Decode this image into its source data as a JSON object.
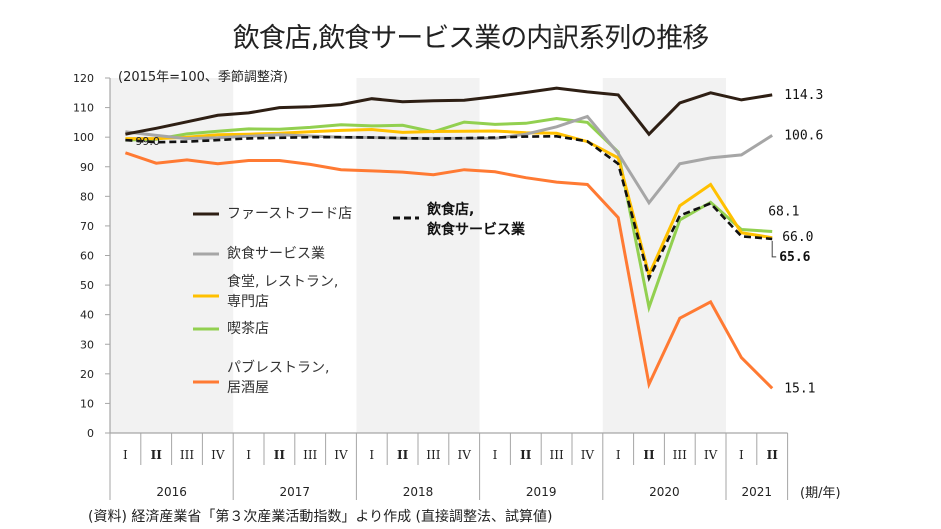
{
  "chart_data": {
    "type": "line",
    "title": "飲食店,飲食サービス業の内訳系列の推移",
    "subtitle": "(2015年=100、季節調整済)",
    "xlabel": "(期/年)",
    "ylabel": "",
    "ylim": [
      0,
      120
    ],
    "yticks": [
      0,
      10,
      20,
      30,
      40,
      50,
      60,
      70,
      80,
      90,
      100,
      110,
      120
    ],
    "grid": false,
    "legend_position": "center-left",
    "quarters": [
      "I",
      "II",
      "III",
      "IV",
      "I",
      "II",
      "III",
      "IV",
      "I",
      "II",
      "III",
      "IV",
      "I",
      "II",
      "III",
      "IV",
      "I",
      "II",
      "III",
      "IV",
      "I",
      "II"
    ],
    "years": [
      {
        "label": "2016",
        "quarters": 4,
        "shaded": true
      },
      {
        "label": "2017",
        "quarters": 4,
        "shaded": false
      },
      {
        "label": "2018",
        "quarters": 4,
        "shaded": true
      },
      {
        "label": "2019",
        "quarters": 4,
        "shaded": false
      },
      {
        "label": "2020",
        "quarters": 4,
        "shaded": true
      },
      {
        "label": "2021",
        "quarters": 2,
        "shaded": false
      }
    ],
    "series": [
      {
        "key": "fastfood",
        "name": "ファーストフード店",
        "color": "#2e1f14",
        "dash": false,
        "values": [
          101.0,
          103.0,
          105.2,
          107.4,
          108.2,
          110.0,
          110.3,
          111.0,
          113.0,
          112.0,
          112.3,
          112.5,
          113.7,
          115.1,
          116.6,
          115.3,
          114.3,
          101.0,
          111.6,
          115.0,
          112.6,
          114.3
        ],
        "end_label": "114.3"
      },
      {
        "key": "service",
        "name": "飲食サービス業",
        "color": "#a6a6a6",
        "dash": false,
        "values": [
          101.8,
          100.6,
          99.5,
          99.8,
          100.3,
          100.8,
          100.4,
          100.0,
          99.9,
          99.6,
          99.6,
          99.6,
          99.6,
          101.0,
          103.5,
          107.0,
          94.5,
          77.8,
          91.0,
          93.0,
          94.0,
          100.6
        ],
        "end_label": "100.6"
      },
      {
        "key": "restaurant",
        "name": "食堂, レストラン, 専門店",
        "color": "#ffc000",
        "dash": false,
        "values": [
          99.5,
          99.5,
          100.0,
          100.8,
          101.0,
          101.3,
          101.8,
          102.3,
          102.6,
          101.6,
          101.9,
          102.0,
          102.1,
          101.5,
          101.3,
          98.5,
          93.0,
          53.5,
          76.8,
          84.0,
          67.7,
          66.0
        ],
        "end_label": "66.0"
      },
      {
        "key": "cafe",
        "name": "喫茶店",
        "color": "#92d050",
        "dash": false,
        "values": [
          99.0,
          99.3,
          101.1,
          102.0,
          102.8,
          102.7,
          103.3,
          104.2,
          103.8,
          104.0,
          101.8,
          105.1,
          104.3,
          104.7,
          106.3,
          105.0,
          95.0,
          42.5,
          72.0,
          78.0,
          68.8,
          68.1
        ],
        "end_label": "68.1"
      },
      {
        "key": "pub",
        "name": "パブレストラン, 居酒屋",
        "color": "#ff7a33",
        "dash": false,
        "values": [
          94.7,
          91.2,
          92.3,
          91.0,
          92.1,
          92.1,
          90.8,
          89.0,
          88.6,
          88.2,
          87.3,
          89.0,
          88.3,
          86.3,
          84.8,
          84.0,
          72.8,
          16.5,
          38.8,
          44.3,
          25.5,
          15.1
        ],
        "end_label": "15.1"
      },
      {
        "key": "total",
        "name": "飲食店, 飲食サービス業",
        "color": "#111111",
        "dash": true,
        "values": [
          99.0,
          98.3,
          98.5,
          99.0,
          99.6,
          99.8,
          100.0,
          100.0,
          99.9,
          99.7,
          99.5,
          99.7,
          99.9,
          100.2,
          100.3,
          98.6,
          91.0,
          52.3,
          73.5,
          77.6,
          66.5,
          65.6
        ],
        "end_label": "65.6",
        "start_label": "99.0"
      }
    ],
    "legend": [
      {
        "series": "fastfood",
        "lines": [
          "ファーストフード店"
        ]
      },
      {
        "series": "service",
        "lines": [
          "飲食サービス業"
        ]
      },
      {
        "series": "restaurant",
        "lines": [
          "食堂, レストラン,",
          "専門店"
        ]
      },
      {
        "series": "cafe",
        "lines": [
          "喫茶店"
        ]
      },
      {
        "series": "pub",
        "lines": [
          "パブレストラン,",
          "居酒屋"
        ]
      },
      {
        "series": "total",
        "lines": [
          "飲食店,",
          "飲食サービス業"
        ]
      }
    ]
  },
  "source_note": "(資料) 経済産業省「第３次産業活動指数」より作成 (直接調整法、試算値)"
}
